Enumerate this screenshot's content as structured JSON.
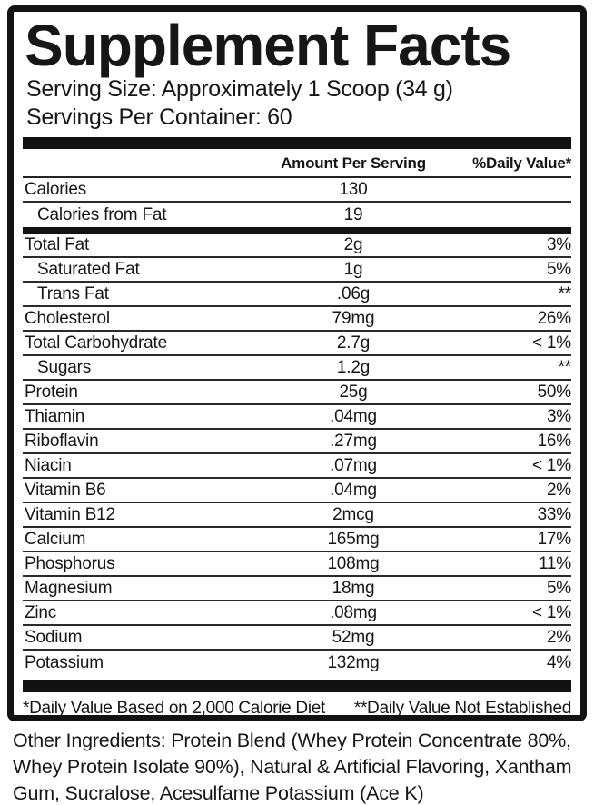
{
  "panel": {
    "title": "Supplement Facts",
    "serving_size": "Serving Size: Approximately 1 Scoop (34 g)",
    "servings_per_container": "Servings Per Container: 60",
    "columns": {
      "amount": "Amount Per Serving",
      "dv": "%Daily Value*"
    },
    "rows": [
      {
        "name": "Calories",
        "amount": "130",
        "dv": "",
        "indent": false
      },
      {
        "name": "Calories from Fat",
        "amount": "19",
        "dv": "",
        "indent": true,
        "thick_bar_after": true
      },
      {
        "name": "Total Fat",
        "amount": "2g",
        "dv": "3%",
        "indent": false
      },
      {
        "name": "Saturated Fat",
        "amount": "1g",
        "dv": "5%",
        "indent": true
      },
      {
        "name": "Trans Fat",
        "amount": ".06g",
        "dv": "**",
        "indent": true
      },
      {
        "name": "Cholesterol",
        "amount": "79mg",
        "dv": "26%",
        "indent": false
      },
      {
        "name": "Total Carbohydrate",
        "amount": "2.7g",
        "dv": "< 1%",
        "indent": false
      },
      {
        "name": "Sugars",
        "amount": "1.2g",
        "dv": "**",
        "indent": true
      },
      {
        "name": "Protein",
        "amount": "25g",
        "dv": "50%",
        "indent": false
      },
      {
        "name": "Thiamin",
        "amount": ".04mg",
        "dv": "3%",
        "indent": false
      },
      {
        "name": "Riboflavin",
        "amount": ".27mg",
        "dv": "16%",
        "indent": false
      },
      {
        "name": "Niacin",
        "amount": ".07mg",
        "dv": "< 1%",
        "indent": false
      },
      {
        "name": "Vitamin B6",
        "amount": ".04mg",
        "dv": "2%",
        "indent": false
      },
      {
        "name": "Vitamin B12",
        "amount": "2mcg",
        "dv": "33%",
        "indent": false
      },
      {
        "name": "Calcium",
        "amount": "165mg",
        "dv": "17%",
        "indent": false
      },
      {
        "name": "Phosphorus",
        "amount": "108mg",
        "dv": "11%",
        "indent": false
      },
      {
        "name": "Magnesium",
        "amount": "18mg",
        "dv": "5%",
        "indent": false
      },
      {
        "name": "Zinc",
        "amount": ".08mg",
        "dv": "< 1%",
        "indent": false
      },
      {
        "name": "Sodium",
        "amount": "52mg",
        "dv": "2%",
        "indent": false
      },
      {
        "name": "Potassium",
        "amount": "132mg",
        "dv": "4%",
        "indent": false,
        "last": true
      }
    ],
    "footnotes": {
      "daily_value": "*Daily Value Based on 2,000 Calorie Diet",
      "not_established": "**Daily Value Not Established"
    },
    "other_ingredients": "Other Ingredients: Protein Blend (Whey Protein Concentrate 80%, Whey Protein Isolate 90%), Natural & Artificial Flavoring, Xantham Gum, Sucralose, Acesulfame Potassium (Ace K)",
    "colors": {
      "ink": "#161616",
      "background": "#ffffff"
    }
  }
}
